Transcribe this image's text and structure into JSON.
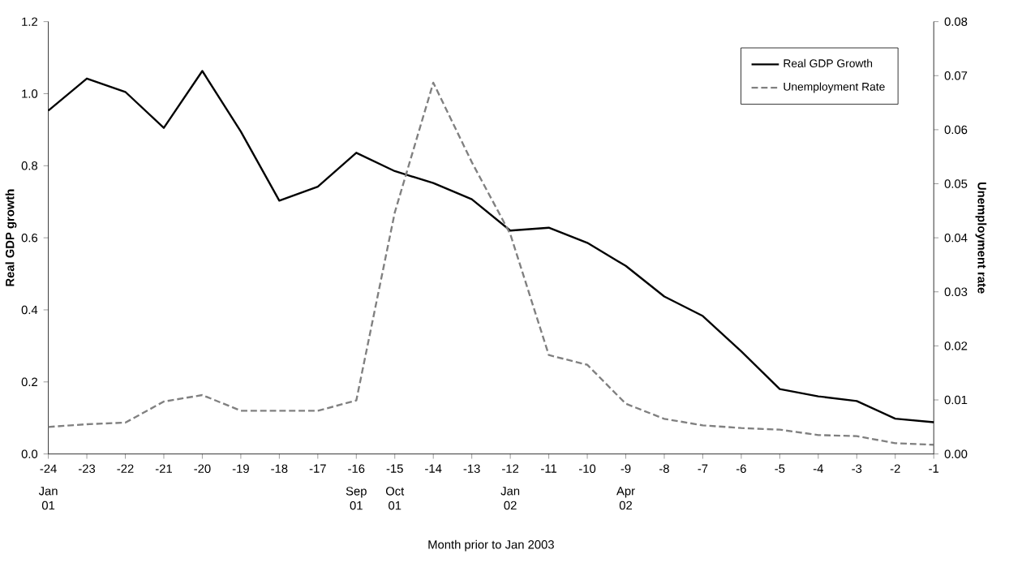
{
  "chart_data": {
    "type": "line",
    "xlabel": "Month prior to Jan 2003",
    "ylabel": "Real GDP growth",
    "y2label": "Unemployment rate",
    "x": [
      -24,
      -23,
      -22,
      -21,
      -20,
      -19,
      -18,
      -17,
      -16,
      -15,
      -14,
      -13,
      -12,
      -11,
      -10,
      -9,
      -8,
      -7,
      -6,
      -5,
      -4,
      -3,
      -2,
      -1
    ],
    "series": [
      {
        "name": "Real GDP Growth",
        "color": "#000000",
        "line_style": "solid",
        "values": [
          0.953,
          1.042,
          1.005,
          0.905,
          1.063,
          0.895,
          0.703,
          0.742,
          0.836,
          0.785,
          0.752,
          0.707,
          0.62,
          0.628,
          0.586,
          0.522,
          0.437,
          0.383,
          0.285,
          0.18,
          0.16,
          0.147,
          0.098,
          0.088
        ]
      },
      {
        "name": "Unemployment Rate",
        "color": "#808080",
        "line_style": "dashed",
        "axis": "y2",
        "values": [
          0.005,
          0.0055,
          0.0058,
          0.0097,
          0.0109,
          0.008,
          0.008,
          0.008,
          0.0099,
          0.0447,
          0.0687,
          0.054,
          0.0407,
          0.0183,
          0.0165,
          0.0093,
          0.0065,
          0.0053,
          0.0048,
          0.0045,
          0.0035,
          0.0033,
          0.002,
          0.0017
        ]
      }
    ],
    "xlim": [
      -24,
      -1
    ],
    "xticks": [
      -24,
      -23,
      -22,
      -21,
      -20,
      -19,
      -18,
      -17,
      -16,
      -15,
      -14,
      -13,
      -12,
      -11,
      -10,
      -9,
      -8,
      -7,
      -6,
      -5,
      -4,
      -3,
      -2,
      -1
    ],
    "ylim": [
      0,
      1.2
    ],
    "yticks": [
      {
        "value": 0,
        "label": "0.0"
      },
      {
        "value": 0.2,
        "label": "0.2"
      },
      {
        "value": 0.4,
        "label": "0.4"
      },
      {
        "value": 0.6,
        "label": "0.6"
      },
      {
        "value": 0.8,
        "label": "0.8"
      },
      {
        "value": 1.0,
        "label": "1.0"
      },
      {
        "value": 1.2,
        "label": "1.2"
      }
    ],
    "y2lim": [
      0,
      0.08
    ],
    "y2ticks": [
      {
        "value": 0,
        "label": "0.00"
      },
      {
        "value": 0.01,
        "label": "0.01"
      },
      {
        "value": 0.02,
        "label": "0.02"
      },
      {
        "value": 0.03,
        "label": "0.03"
      },
      {
        "value": 0.04,
        "label": "0.04"
      },
      {
        "value": 0.05,
        "label": "0.05"
      },
      {
        "value": 0.06,
        "label": "0.06"
      },
      {
        "value": 0.07,
        "label": "0.07"
      },
      {
        "value": 0.08,
        "label": "0.08"
      }
    ],
    "legend": "top right",
    "x2lim": [
      "2001-01",
      "2002-12"
    ],
    "x2ticks": [
      {
        "value": "2001-01",
        "label": "Jan 01"
      },
      {
        "value": "2001-09",
        "label": "Sep 01"
      },
      {
        "value": "2001-10",
        "label": "Oct 01"
      },
      {
        "value": "2002-01",
        "label": "Jan 02"
      },
      {
        "value": "2002-04",
        "label": "Apr 02"
      }
    ]
  }
}
